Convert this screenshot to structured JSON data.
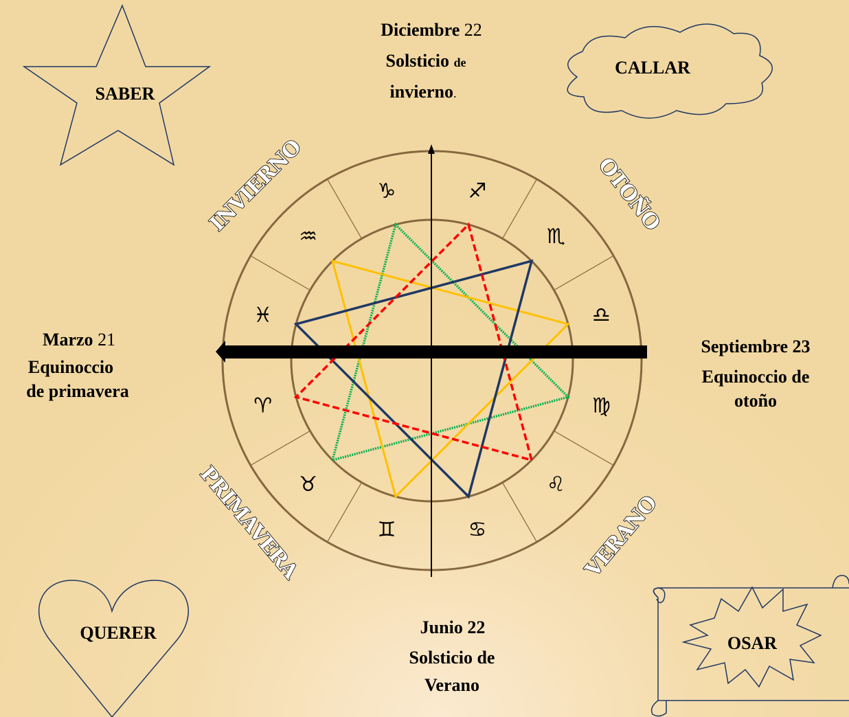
{
  "corners": {
    "saber": "SABER",
    "callar": "CALLAR",
    "querer": "QUERER",
    "osar": "OSAR"
  },
  "december": {
    "month": "Diciembre",
    "day": "22",
    "solstice": "Solsticio",
    "de": "de",
    "season": "invierno",
    "dot": "."
  },
  "march": {
    "month": "Marzo",
    "day": "21",
    "line2": "Equinoccio",
    "line3": "de primavera"
  },
  "september": {
    "line1": "Septiembre 23",
    "line2": "Equinoccio de",
    "line3": "otoño"
  },
  "june": {
    "line1": "Junio 22",
    "line2": "Solsticio de",
    "line3": "Verano"
  },
  "seasons": {
    "winter": "INVIERNO",
    "autumn": "OTOÑO",
    "summer": "VERANO",
    "spring": "PRIMAVERA"
  },
  "signs": [
    "♑",
    "♐",
    "♏",
    "♎",
    "♍",
    "♌",
    "♋",
    "♊",
    "♉",
    "♈",
    "♓",
    "♒"
  ]
}
